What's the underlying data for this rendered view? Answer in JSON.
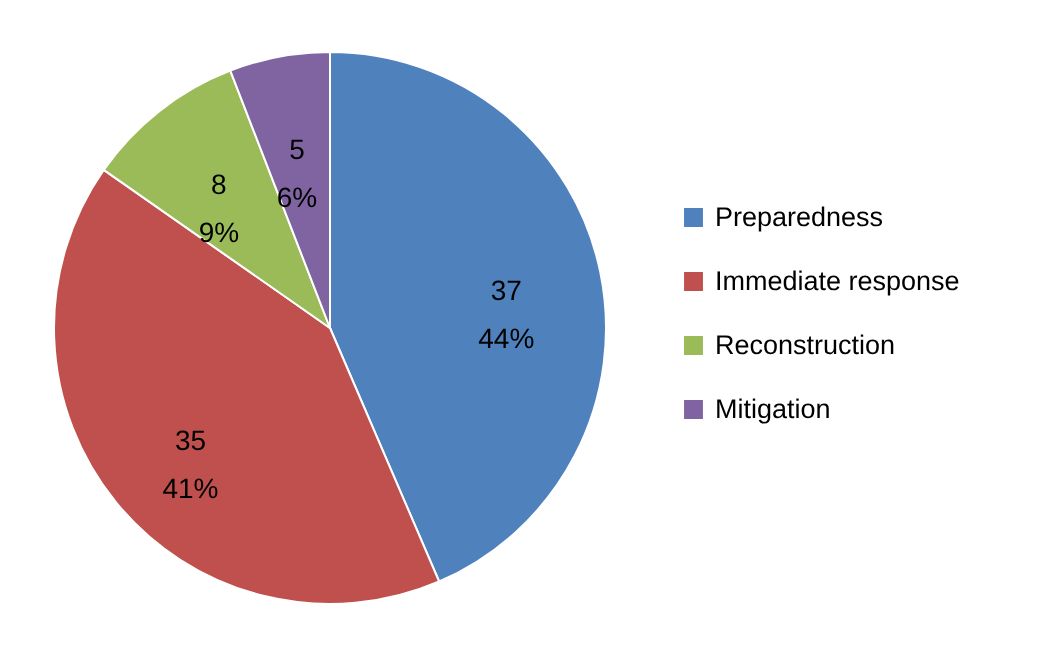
{
  "chart_data": {
    "type": "pie",
    "categories": [
      "Preparedness",
      "Immediate response",
      "Reconstruction",
      "Mitigation"
    ],
    "values": [
      37,
      35,
      8,
      5
    ],
    "colors": [
      "#4f81bd",
      "#c0504d",
      "#9bbb59",
      "#8064a2"
    ],
    "value_labels": [
      "37\n44%",
      "35\n41%",
      "8\n9%",
      "5\n6%"
    ],
    "legend": "right"
  }
}
